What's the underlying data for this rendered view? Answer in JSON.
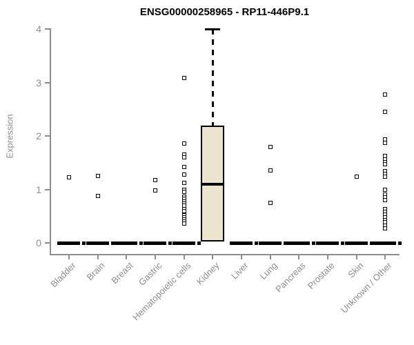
{
  "page_title": "ENSG00000258965 - RP11-446P9.1",
  "chart_data": {
    "type": "boxplot",
    "title": "ENSG00000258965 - RP11-446P9.1",
    "xlabel": "",
    "ylabel": "Expression",
    "ylim": [
      0,
      4
    ],
    "yticks": [
      0,
      1,
      2,
      3,
      4
    ],
    "grid": false,
    "legend": false,
    "box_fill_color": "#EBE5CE",
    "box_border_color": "#000000",
    "point_color": "#000000",
    "axis_color": "#8C8C8C",
    "label_color": "#8C8C8C",
    "categories": [
      "Bladder",
      "Brain",
      "Breast",
      "Gastric",
      "Hematopoietic cells",
      "Kidney",
      "Liver",
      "Lung",
      "Pancreas",
      "Prostate",
      "Skin",
      "Unknown / Other"
    ],
    "groups": [
      {
        "category": "Bladder",
        "zero_bar": true,
        "points": [
          1.22
        ]
      },
      {
        "category": "Brain",
        "zero_bar": true,
        "points": [
          1.25,
          0.88
        ]
      },
      {
        "category": "Breast",
        "zero_bar": true,
        "points": []
      },
      {
        "category": "Gastric",
        "zero_bar": true,
        "points": [
          1.18,
          0.98
        ]
      },
      {
        "category": "Hematopoietic cells",
        "zero_bar": true,
        "points": [
          3.08,
          1.86,
          1.65,
          1.6,
          1.42,
          1.28,
          1.12,
          0.99,
          0.95,
          0.86,
          0.82,
          0.78,
          0.74,
          0.7,
          0.63,
          0.59,
          0.52,
          0.48,
          0.44,
          0.4,
          0.36
        ]
      },
      {
        "category": "Kidney",
        "zero_bar": false,
        "box": {
          "whisker_high": 4.0,
          "q3": 2.2,
          "median": 1.1,
          "q1": 0.02,
          "whisker_low": 0
        },
        "points": []
      },
      {
        "category": "Liver",
        "zero_bar": true,
        "points": []
      },
      {
        "category": "Lung",
        "zero_bar": true,
        "points": [
          1.8,
          1.35,
          0.75
        ]
      },
      {
        "category": "Pancreas",
        "zero_bar": true,
        "points": []
      },
      {
        "category": "Prostate",
        "zero_bar": true,
        "points": []
      },
      {
        "category": "Skin",
        "zero_bar": true,
        "points": [
          1.24
        ]
      },
      {
        "category": "Unknown / Other",
        "zero_bar": true,
        "points": [
          2.78,
          2.45,
          1.94,
          1.87,
          1.62,
          1.56,
          1.51,
          1.47,
          1.34,
          1.29,
          1.24,
          0.99,
          0.9,
          0.85,
          0.8,
          0.63,
          0.58,
          0.53,
          0.48,
          0.43,
          0.39,
          0.32,
          0.27
        ]
      }
    ]
  }
}
